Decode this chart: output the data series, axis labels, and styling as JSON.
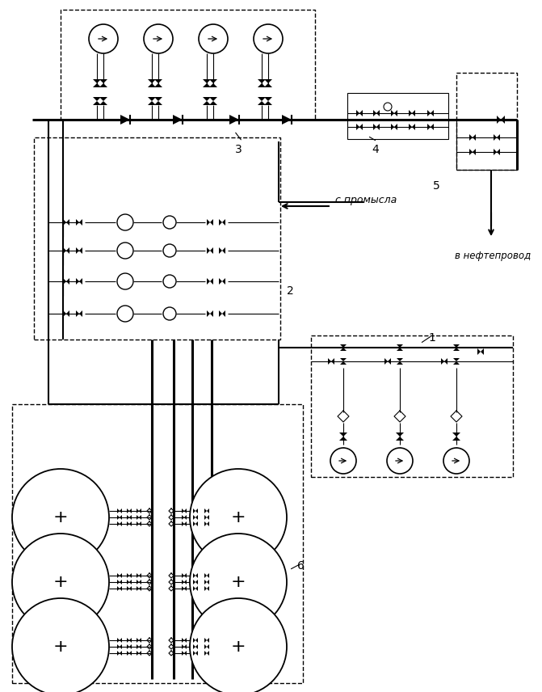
{
  "bg_color": "#ffffff",
  "labels": {
    "s_promysla": "с промысла",
    "v_nefteprovod": "в нефтепровод",
    "num1": "1",
    "num2": "2",
    "num3": "3",
    "num4": "4",
    "num5": "5",
    "num6": "6"
  },
  "figsize": [
    6.71,
    8.56
  ],
  "dpi": 100
}
